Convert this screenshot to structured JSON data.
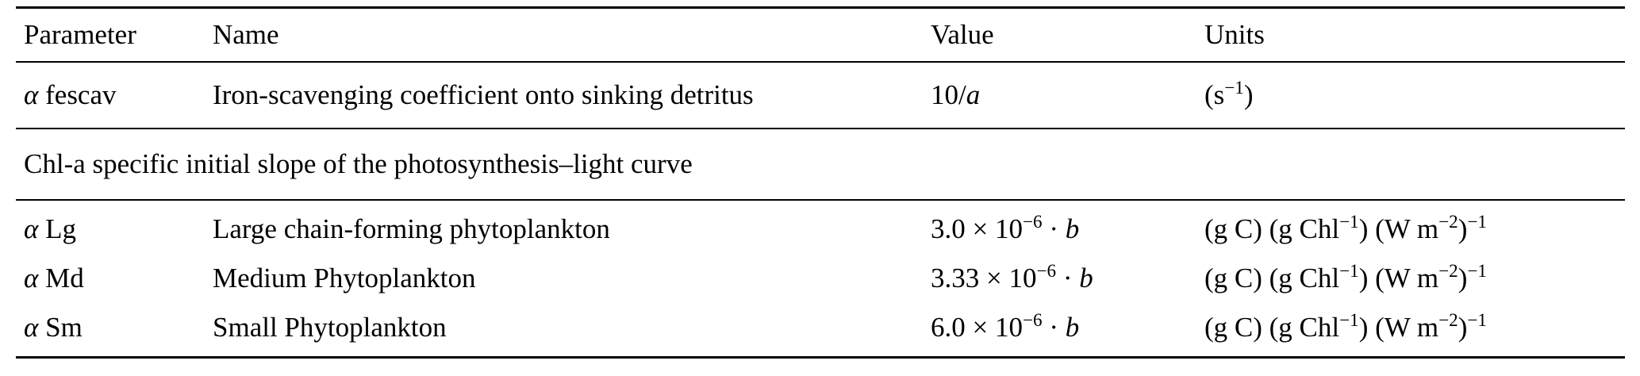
{
  "table": {
    "columns": [
      {
        "key": "parameter",
        "label": "Parameter"
      },
      {
        "key": "name",
        "label": "Name"
      },
      {
        "key": "value",
        "label": "Value"
      },
      {
        "key": "units",
        "label": "Units"
      }
    ],
    "sections": [
      {
        "heading": null,
        "rows": [
          {
            "parameter": "*α* fescav",
            "name": "Iron-scavenging coefficient onto sinking detritus",
            "value": "10/*a*",
            "units": "(s^{−1})"
          }
        ]
      },
      {
        "heading": "Chl-a specific initial slope of the photosynthesis–light curve",
        "rows": [
          {
            "parameter": "*α* Lg",
            "name": "Large chain-forming phytoplankton",
            "value": "3.0 × 10^{−6} · *b*",
            "units": "(g C) (g Chl^{−1}) (W m^{−2})^{−1}"
          },
          {
            "parameter": "*α* Md",
            "name": "Medium Phytoplankton",
            "value": "3.33 × 10^{−6} · *b*",
            "units": "(g C) (g Chl^{−1}) (W m^{−2})^{−1}"
          },
          {
            "parameter": "*α* Sm",
            "name": "Small Phytoplankton",
            "value": "6.0 × 10^{−6} · *b*",
            "units": "(g C) (g Chl^{−1}) (W m^{−2})^{−1}"
          }
        ]
      }
    ]
  }
}
